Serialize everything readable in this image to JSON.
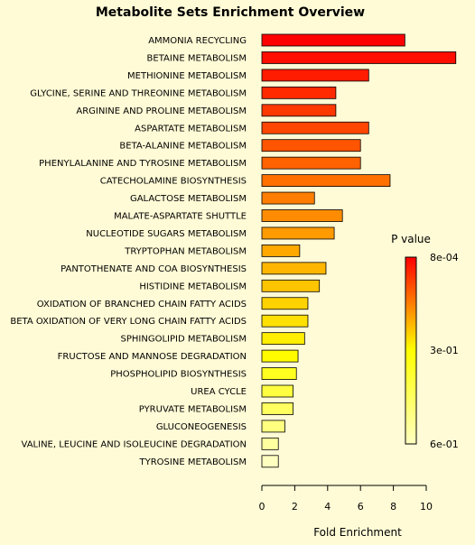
{
  "chart_data": {
    "type": "bar",
    "orientation": "horizontal",
    "title": "Metabolite Sets Enrichment Overview",
    "xlabel": "Fold Enrichment",
    "ylabel": "",
    "xlim": [
      0,
      12
    ],
    "xticks": [
      0,
      2,
      4,
      6,
      8,
      10
    ],
    "grid": false,
    "categories": [
      "AMMONIA RECYCLING",
      "BETAINE METABOLISM",
      "METHIONINE METABOLISM",
      "GLYCINE, SERINE AND THREONINE METABOLISM",
      "ARGININE AND PROLINE METABOLISM",
      "ASPARTATE METABOLISM",
      "BETA-ALANINE METABOLISM",
      "PHENYLALANINE AND TYROSINE METABOLISM",
      "CATECHOLAMINE BIOSYNTHESIS",
      "GALACTOSE METABOLISM",
      "MALATE-ASPARTATE SHUTTLE",
      "NUCLEOTIDE SUGARS METABOLISM",
      "TRYPTOPHAN METABOLISM",
      "PANTOTHENATE AND COA BIOSYNTHESIS",
      "HISTIDINE METABOLISM",
      "OXIDATION OF BRANCHED CHAIN FATTY ACIDS",
      "BETA OXIDATION OF VERY LONG CHAIN FATTY ACIDS",
      "SPHINGOLIPID METABOLISM",
      "FRUCTOSE AND MANNOSE DEGRADATION",
      "PHOSPHOLIPID BIOSYNTHESIS",
      "UREA CYCLE",
      "PYRUVATE METABOLISM",
      "GLUCONEOGENESIS",
      "VALINE, LEUCINE AND ISOLEUCINE DEGRADATION",
      "TYROSINE METABOLISM"
    ],
    "values": [
      8.7,
      11.8,
      6.5,
      4.5,
      4.5,
      6.5,
      6.0,
      6.0,
      7.8,
      3.2,
      4.9,
      4.4,
      2.3,
      3.9,
      3.5,
      2.8,
      2.8,
      2.6,
      2.2,
      2.1,
      1.9,
      1.9,
      1.4,
      1.0,
      1.0
    ],
    "colors": [
      "#ff0000",
      "#ff0e00",
      "#ff1c00",
      "#ff2a00",
      "#ff3800",
      "#ff4600",
      "#ff5400",
      "#ff6200",
      "#ff7000",
      "#ff7e00",
      "#ff8c00",
      "#ff9a00",
      "#ffa800",
      "#ffb600",
      "#ffc400",
      "#ffd200",
      "#ffe000",
      "#ffee00",
      "#fffc00",
      "#ffff20",
      "#ffff40",
      "#ffff60",
      "#ffff80",
      "#ffffa0",
      "#ffffc0"
    ],
    "legend": {
      "title": "P value",
      "labels": [
        "8e-04",
        "3e-01",
        "6e-01"
      ],
      "colors": [
        "#ff0000",
        "#ffff00",
        "#ffffc0"
      ],
      "placement": "right"
    }
  }
}
